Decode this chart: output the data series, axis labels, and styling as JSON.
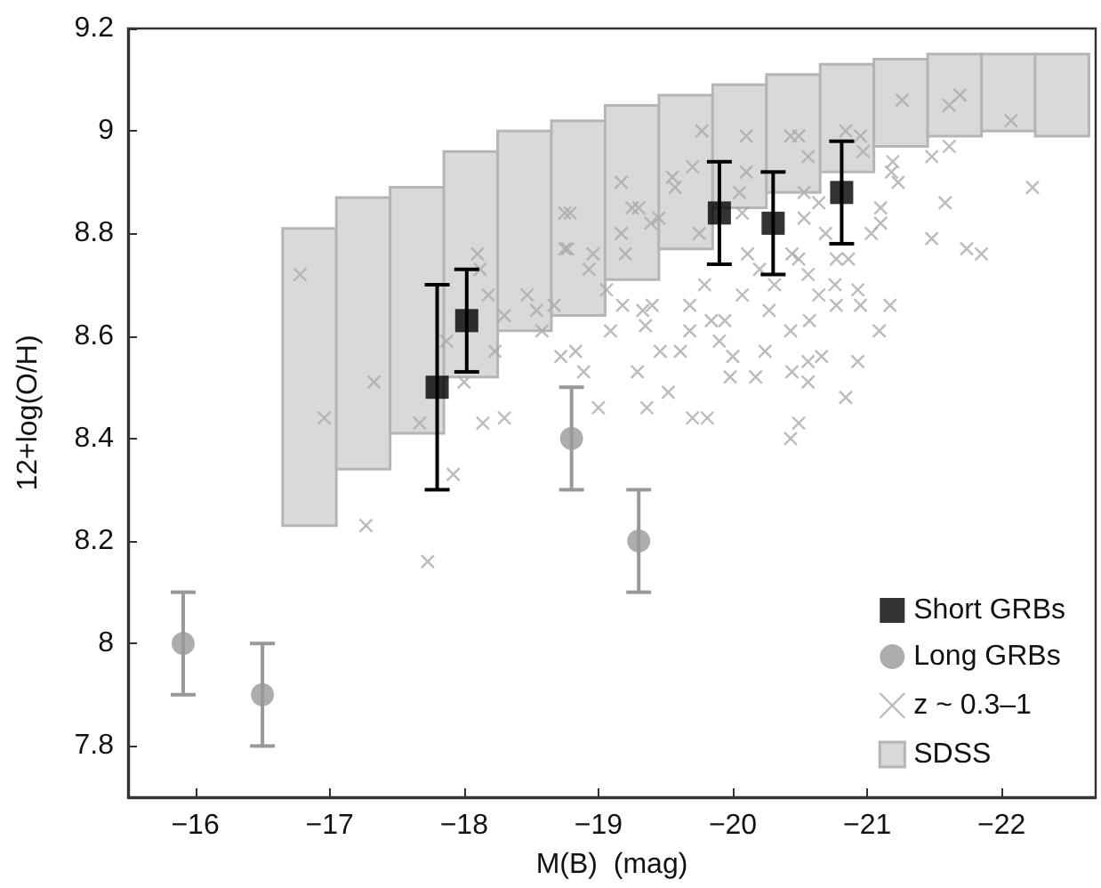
{
  "chart_data": {
    "type": "scatter",
    "xlabel": "M(B)  (mag)",
    "ylabel": "12+log(O/H)",
    "xlim": [
      -15.5,
      -22.7
    ],
    "ylim": [
      7.7,
      9.2
    ],
    "xticks": [
      {
        "value": -16,
        "label": "−16"
      },
      {
        "value": -17,
        "label": "−17"
      },
      {
        "value": -18,
        "label": "−18"
      },
      {
        "value": -19,
        "label": "−19"
      },
      {
        "value": -20,
        "label": "−20"
      },
      {
        "value": -21,
        "label": "−21"
      },
      {
        "value": -22,
        "label": "−22"
      }
    ],
    "yticks": [
      7.8,
      8,
      8.2,
      8.4,
      8.6,
      8.8,
      9,
      9.2
    ],
    "grid": false,
    "legend": "bottom right",
    "series": [
      {
        "name": "Short GRBs",
        "marker": "square",
        "color": "#000000",
        "x": [
          -17.8,
          -18.02,
          -19.9
        ],
        "values": [
          8.5,
          8.63,
          8.84
        ],
        "errors": [
          0.2,
          0.1,
          0.1
        ]
      },
      {
        "name": "Long GRBs",
        "marker": "circle",
        "color": "#999999",
        "x": [
          -15.91,
          -16.5,
          -18.8,
          -19.3
        ],
        "values": [
          8.0,
          7.9,
          8.4,
          8.2
        ],
        "errors": [
          0.1,
          0.1,
          0.1,
          0.1
        ]
      },
      {
        "name": "z ~ 0.3–1",
        "marker": "cross",
        "color": "#aaaaaa",
        "x": [
          -16.78,
          -16.96,
          -17.33,
          -17.67,
          -17.87,
          -18.0,
          -18.1,
          -18.12,
          -18.18,
          -18.23,
          -18.3,
          -18.3,
          -18.47,
          -18.54,
          -18.58,
          -18.67,
          -18.72,
          -18.75,
          -18.75,
          -18.14,
          -17.27,
          -17.73,
          -17.92,
          -19.77,
          -18.79,
          -18.77,
          -19.17,
          -19.25,
          -19.3,
          -19.17,
          -19.2,
          -18.96,
          -18.93,
          -19.06,
          -19.18,
          -19.33,
          -19.4,
          -19.09,
          -19.35,
          -19.46,
          -19.61,
          -18.83,
          -18.89,
          -19.29,
          -19.0,
          -19.36,
          -19.52,
          -19.7,
          -19.81,
          -19.39,
          -19.45,
          -19.55,
          -19.57,
          -19.7,
          -19.68,
          -19.68,
          -19.75,
          -19.79,
          -19.84,
          -19.94,
          -19.9,
          -20.0,
          -19.98,
          -20.17,
          -20.1,
          -20.1,
          -20.05,
          -20.07,
          -20.11,
          -20.07,
          -20.2,
          -20.27,
          -20.24,
          -20.31,
          -20.43,
          -20.49,
          -20.56,
          -20.53,
          -20.53,
          -20.44,
          -20.49,
          -20.56,
          -20.43,
          -20.57,
          -20.64,
          -20.66,
          -20.56,
          -20.44,
          -20.56,
          -20.49,
          -20.64,
          -20.69,
          -20.77,
          -20.76,
          -20.86,
          -20.77,
          -20.93,
          -20.95,
          -20.93,
          -20.84,
          -20.97,
          -20.95,
          -20.84,
          -21.03,
          -21.1,
          -21.1,
          -21.09,
          -21.17,
          -21.19,
          -21.18,
          -21.23,
          -21.26,
          -21.48,
          -21.48,
          -21.58,
          -21.61,
          -21.61,
          -21.69,
          -21.74,
          -21.85,
          -22.07,
          -22.23,
          -20.43
        ],
        "values": [
          8.72,
          8.44,
          8.51,
          8.43,
          8.59,
          8.51,
          8.76,
          8.73,
          8.68,
          8.57,
          8.64,
          8.44,
          8.68,
          8.65,
          8.61,
          8.66,
          8.56,
          8.84,
          8.77,
          8.43,
          8.23,
          8.16,
          8.33,
          9.0,
          8.84,
          8.77,
          8.9,
          8.85,
          8.85,
          8.8,
          8.76,
          8.76,
          8.73,
          8.69,
          8.66,
          8.65,
          8.66,
          8.61,
          8.62,
          8.57,
          8.57,
          8.57,
          8.53,
          8.53,
          8.46,
          8.46,
          8.49,
          8.44,
          8.44,
          8.82,
          8.83,
          8.91,
          8.89,
          8.93,
          8.66,
          8.61,
          8.8,
          8.7,
          8.63,
          8.63,
          8.59,
          8.56,
          8.52,
          8.52,
          8.99,
          8.92,
          8.88,
          8.84,
          8.76,
          8.68,
          8.73,
          8.65,
          8.57,
          8.7,
          8.99,
          8.99,
          8.95,
          8.88,
          8.83,
          8.76,
          8.75,
          8.72,
          8.61,
          8.63,
          8.68,
          8.56,
          8.55,
          8.53,
          8.51,
          8.43,
          8.86,
          8.8,
          8.75,
          8.7,
          8.75,
          8.66,
          8.69,
          8.66,
          8.55,
          8.48,
          8.96,
          8.99,
          9.0,
          8.8,
          8.82,
          8.85,
          8.61,
          8.66,
          8.94,
          8.92,
          8.9,
          9.06,
          8.95,
          8.79,
          8.86,
          8.97,
          9.05,
          9.07,
          8.77,
          8.76,
          9.02,
          8.89,
          8.4
        ]
      },
      {
        "name": "SDSS",
        "type": "bar",
        "color": "#d9d9d9",
        "x": [
          -16.85,
          -17.25,
          -17.65,
          -18.05,
          -18.45,
          -18.85,
          -19.25,
          -19.65,
          -20.05,
          -20.45,
          -20.85,
          -21.25,
          -21.65,
          -22.05,
          -22.45
        ],
        "base": [
          8.23,
          8.34,
          8.41,
          8.52,
          8.61,
          8.64,
          8.71,
          8.77,
          8.85,
          8.88,
          8.92,
          8.97,
          8.99,
          9.0,
          8.99
        ],
        "values": [
          0.58,
          0.53,
          0.48,
          0.44,
          0.39,
          0.38,
          0.34,
          0.3,
          0.24,
          0.23,
          0.21,
          0.17,
          0.16,
          0.15,
          0.16
        ]
      },
      {
        "marker": "square",
        "color": "#000000",
        "x": [
          -20.3,
          -20.81
        ],
        "values": [
          8.82,
          8.88
        ],
        "errors": [
          0.1,
          0.1
        ]
      }
    ]
  }
}
